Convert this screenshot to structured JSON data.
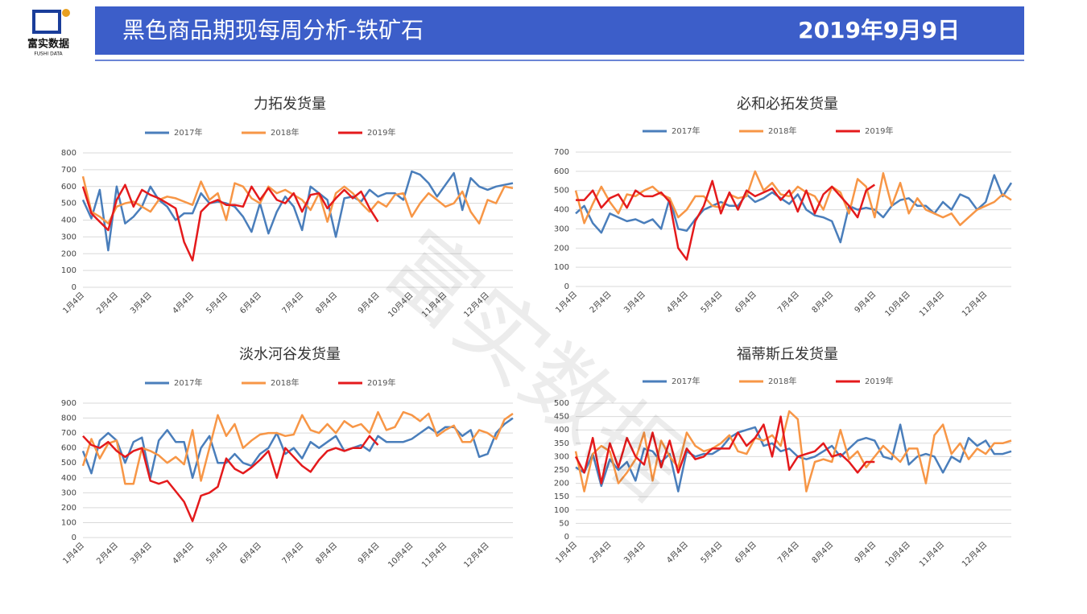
{
  "header": {
    "title": "黑色商品期现每周分析-铁矿石",
    "date": "2019年9月9日"
  },
  "logo": {
    "name": "富实数据",
    "subtitle": "FUSHI DATA"
  },
  "watermark": "富实数据",
  "chart_data": [
    {
      "type": "line",
      "title": "力拓发货量",
      "legend": "top",
      "grid": true,
      "categories": [
        "1月4日",
        null,
        null,
        null,
        "2月4日",
        null,
        null,
        null,
        "3月4日",
        null,
        null,
        null,
        null,
        "4月4日",
        null,
        null,
        null,
        "5月4日",
        null,
        null,
        null,
        "6月4日",
        null,
        null,
        null,
        null,
        "7月4日",
        null,
        null,
        null,
        "8月4日",
        null,
        null,
        null,
        null,
        "9月4日",
        null,
        null,
        null,
        "10月4日",
        null,
        null,
        null,
        "11月4日",
        null,
        null,
        null,
        null,
        "12月4日",
        null,
        null,
        null
      ],
      "ylim": [
        0,
        800
      ],
      "yticks": [
        0,
        100,
        200,
        300,
        400,
        500,
        600,
        700,
        800
      ],
      "series": [
        {
          "name": "2017年",
          "color": "#4a7ebb",
          "values": [
            520,
            410,
            580,
            220,
            600,
            380,
            420,
            480,
            600,
            520,
            480,
            400,
            440,
            440,
            560,
            500,
            510,
            500,
            480,
            420,
            330,
            500,
            320,
            450,
            540,
            480,
            340,
            600,
            560,
            520,
            300,
            530,
            540,
            510,
            580,
            540,
            560,
            560,
            520,
            690,
            670,
            620,
            540,
            610,
            680,
            460,
            650,
            600,
            580,
            600,
            610,
            620
          ]
        },
        {
          "name": "2018年",
          "color": "#f79646",
          "values": [
            660,
            450,
            420,
            380,
            480,
            500,
            510,
            480,
            450,
            520,
            540,
            530,
            510,
            490,
            630,
            520,
            560,
            400,
            620,
            600,
            530,
            500,
            600,
            560,
            580,
            550,
            520,
            460,
            560,
            390,
            560,
            600,
            560,
            500,
            450,
            510,
            480,
            550,
            560,
            420,
            500,
            560,
            520,
            480,
            500,
            570,
            450,
            380,
            520,
            500,
            600,
            590
          ]
        },
        {
          "name": "2019年",
          "color": "#e41a1c",
          "values": [
            600,
            440,
            390,
            340,
            520,
            610,
            480,
            580,
            550,
            530,
            500,
            470,
            270,
            160,
            450,
            500,
            520,
            490,
            490,
            480,
            600,
            520,
            590,
            520,
            500,
            560,
            450,
            550,
            560,
            470,
            530,
            580,
            530,
            570,
            470,
            390,
            null,
            null,
            null,
            null,
            null,
            null,
            null,
            null,
            null,
            null,
            null,
            null,
            null,
            null,
            null,
            null
          ]
        }
      ]
    },
    {
      "type": "line",
      "title": "必和必拓发货量",
      "legend": "top",
      "grid": true,
      "categories": [
        "1月4日",
        null,
        null,
        null,
        "2月4日",
        null,
        null,
        null,
        "3月4日",
        null,
        null,
        null,
        null,
        "4月4日",
        null,
        null,
        null,
        "5月4日",
        null,
        null,
        null,
        "6月4日",
        null,
        null,
        null,
        null,
        "7月4日",
        null,
        null,
        null,
        "8月4日",
        null,
        null,
        null,
        null,
        "9月4日",
        null,
        null,
        null,
        "10月4日",
        null,
        null,
        null,
        "11月4日",
        null,
        null,
        null,
        null,
        "12月4日",
        null,
        null,
        null
      ],
      "ylim": [
        0,
        700
      ],
      "yticks": [
        0,
        100,
        200,
        300,
        400,
        500,
        600,
        700
      ],
      "series": [
        {
          "name": "2017年",
          "color": "#4a7ebb",
          "values": [
            380,
            420,
            330,
            280,
            380,
            360,
            340,
            350,
            330,
            350,
            300,
            460,
            300,
            290,
            350,
            400,
            420,
            440,
            420,
            420,
            480,
            440,
            460,
            490,
            460,
            430,
            480,
            400,
            370,
            360,
            340,
            230,
            420,
            400,
            410,
            400,
            360,
            420,
            450,
            460,
            420,
            420,
            380,
            440,
            400,
            480,
            460,
            400,
            440,
            580,
            470,
            540
          ]
        },
        {
          "name": "2018年",
          "color": "#f79646",
          "values": [
            500,
            330,
            430,
            520,
            440,
            380,
            480,
            470,
            500,
            520,
            480,
            460,
            360,
            400,
            470,
            470,
            420,
            410,
            480,
            460,
            470,
            600,
            500,
            540,
            480,
            470,
            520,
            490,
            470,
            400,
            520,
            490,
            380,
            560,
            520,
            360,
            590,
            420,
            540,
            380,
            460,
            400,
            380,
            360,
            380,
            320,
            360,
            400,
            420,
            440,
            480,
            450
          ]
        },
        {
          "name": "2019年",
          "color": "#e41a1c",
          "values": [
            450,
            450,
            500,
            410,
            460,
            480,
            410,
            500,
            470,
            470,
            490,
            440,
            200,
            140,
            340,
            420,
            550,
            380,
            490,
            400,
            500,
            470,
            490,
            510,
            450,
            500,
            390,
            500,
            380,
            480,
            520,
            470,
            420,
            360,
            500,
            530,
            null,
            null,
            null,
            null,
            null,
            null,
            null,
            null,
            null,
            null,
            null,
            null,
            null,
            null,
            null,
            null
          ]
        }
      ]
    },
    {
      "type": "line",
      "title": "淡水河谷发货量",
      "legend": "top",
      "grid": true,
      "categories": [
        "1月4日",
        null,
        null,
        null,
        "2月4日",
        null,
        null,
        null,
        "3月4日",
        null,
        null,
        null,
        null,
        "4月4日",
        null,
        null,
        null,
        "5月4日",
        null,
        null,
        null,
        "6月4日",
        null,
        null,
        null,
        null,
        "7月4日",
        null,
        null,
        null,
        "8月4日",
        null,
        null,
        null,
        null,
        "9月4日",
        null,
        null,
        null,
        "10月4日",
        null,
        null,
        null,
        "11月4日",
        null,
        null,
        null,
        null,
        "12月4日",
        null,
        null,
        null
      ],
      "ylim": [
        0,
        900
      ],
      "yticks": [
        0,
        100,
        200,
        300,
        400,
        500,
        600,
        700,
        800,
        900
      ],
      "series": [
        {
          "name": "2017年",
          "color": "#4a7ebb",
          "values": [
            580,
            430,
            650,
            700,
            650,
            500,
            640,
            670,
            400,
            650,
            720,
            640,
            640,
            400,
            600,
            680,
            500,
            500,
            560,
            500,
            480,
            560,
            600,
            700,
            560,
            600,
            530,
            640,
            600,
            640,
            680,
            580,
            600,
            620,
            580,
            680,
            640,
            640,
            640,
            660,
            700,
            740,
            700,
            740,
            740,
            680,
            720,
            540,
            560,
            700,
            760,
            800
          ]
        },
        {
          "name": "2018年",
          "color": "#f79646",
          "values": [
            480,
            660,
            530,
            630,
            650,
            360,
            360,
            600,
            580,
            550,
            500,
            540,
            490,
            720,
            380,
            600,
            820,
            680,
            760,
            600,
            650,
            690,
            700,
            700,
            680,
            690,
            820,
            720,
            700,
            760,
            700,
            780,
            740,
            760,
            700,
            840,
            720,
            740,
            840,
            820,
            780,
            830,
            680,
            720,
            750,
            640,
            640,
            720,
            700,
            660,
            790,
            830
          ]
        },
        {
          "name": "2019年",
          "color": "#e41a1c",
          "values": [
            680,
            620,
            600,
            640,
            580,
            540,
            580,
            600,
            380,
            360,
            380,
            310,
            240,
            110,
            280,
            300,
            340,
            530,
            460,
            430,
            470,
            520,
            580,
            400,
            600,
            540,
            480,
            440,
            520,
            580,
            600,
            580,
            600,
            600,
            680,
            620,
            null,
            null,
            null,
            null,
            null,
            null,
            null,
            null,
            null,
            null,
            null,
            null,
            null,
            null,
            null,
            null
          ]
        }
      ]
    },
    {
      "type": "line",
      "title": "福蒂斯丘发货量",
      "legend": "top",
      "grid": true,
      "categories": [
        "1月4日",
        null,
        null,
        null,
        "2月4日",
        null,
        null,
        null,
        "3月4日",
        null,
        null,
        null,
        null,
        "4月4日",
        null,
        null,
        null,
        "5月4日",
        null,
        null,
        null,
        "6月4日",
        null,
        null,
        null,
        null,
        "7月4日",
        null,
        null,
        null,
        "8月4日",
        null,
        null,
        null,
        null,
        "9月4日",
        null,
        null,
        null,
        "10月4日",
        null,
        null,
        null,
        "11月4日",
        null,
        null,
        null,
        null,
        "12月4日",
        null,
        null,
        null
      ],
      "ylim": [
        0,
        500
      ],
      "yticks": [
        0,
        50,
        100,
        150,
        200,
        250,
        300,
        350,
        400,
        450,
        500
      ],
      "series": [
        {
          "name": "2017年",
          "color": "#4a7ebb",
          "values": [
            260,
            240,
            310,
            190,
            290,
            250,
            280,
            210,
            330,
            320,
            280,
            310,
            170,
            320,
            300,
            310,
            310,
            330,
            370,
            390,
            400,
            410,
            340,
            350,
            320,
            330,
            300,
            290,
            300,
            320,
            340,
            300,
            330,
            360,
            370,
            360,
            300,
            290,
            420,
            270,
            300,
            310,
            300,
            240,
            300,
            280,
            370,
            340,
            360,
            310,
            310,
            320
          ]
        },
        {
          "name": "2018年",
          "color": "#f79646",
          "values": [
            320,
            170,
            310,
            340,
            320,
            200,
            240,
            290,
            390,
            210,
            360,
            300,
            260,
            390,
            340,
            320,
            330,
            350,
            380,
            320,
            310,
            370,
            360,
            380,
            340,
            470,
            440,
            170,
            280,
            290,
            280,
            400,
            290,
            320,
            260,
            300,
            340,
            310,
            280,
            330,
            330,
            200,
            380,
            420,
            310,
            350,
            290,
            330,
            310,
            350,
            350,
            360
          ]
        },
        {
          "name": "2019年",
          "color": "#e41a1c",
          "values": [
            300,
            240,
            370,
            200,
            350,
            260,
            370,
            300,
            270,
            390,
            260,
            360,
            240,
            330,
            290,
            300,
            330,
            330,
            330,
            390,
            340,
            370,
            420,
            300,
            450,
            250,
            300,
            310,
            320,
            350,
            300,
            310,
            280,
            240,
            280,
            280,
            null,
            null,
            null,
            null,
            null,
            null,
            null,
            null,
            null,
            null,
            null,
            null,
            null,
            null,
            null,
            null
          ]
        }
      ]
    }
  ]
}
